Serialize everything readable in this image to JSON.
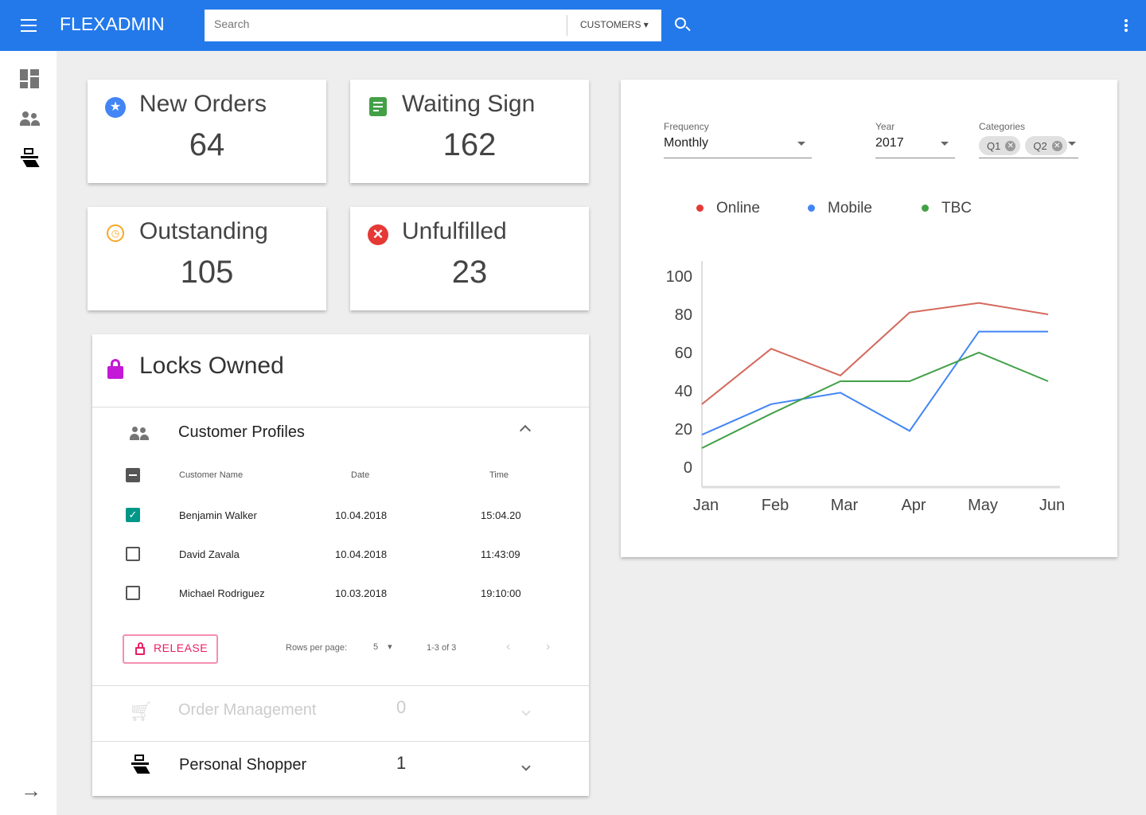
{
  "header": {
    "title": "FLEXADMIN",
    "search_placeholder": "Search",
    "scope": "CUSTOMERS"
  },
  "stats": [
    {
      "title": "New Orders",
      "value": "64",
      "icon": "star-icon",
      "color": "#4285f4"
    },
    {
      "title": "Waiting Sign",
      "value": "162",
      "icon": "document-icon",
      "color": "#43a047"
    },
    {
      "title": "Outstanding",
      "value": "105",
      "icon": "history-icon",
      "color": "#f9a825"
    },
    {
      "title": "Unfulfilled",
      "value": "23",
      "icon": "error-icon",
      "color": "#e53935"
    }
  ],
  "locks": {
    "title": "Locks Owned",
    "profiles": {
      "title": "Customer Profiles",
      "headers": [
        "Customer Name",
        "Date",
        "Time"
      ],
      "rows": [
        {
          "name": "Benjamin Walker",
          "date": "10.04.2018",
          "time": "15:04.20",
          "checked": true
        },
        {
          "name": "David Zavala",
          "date": "10.04.2018",
          "time": "11:43:09",
          "checked": false
        },
        {
          "name": "Michael Rodriguez",
          "date": "10.03.2018",
          "time": "19:10:00",
          "checked": false
        }
      ],
      "release": "RELEASE",
      "rows_per_page_label": "Rows per page:",
      "rows_per_page": "5",
      "range": "1-3 of 3"
    },
    "order_mgmt": {
      "title": "Order Management",
      "count": "0"
    },
    "shopper": {
      "title": "Personal Shopper",
      "count": "1"
    }
  },
  "filters": {
    "frequency_label": "Frequency",
    "frequency": "Monthly",
    "year_label": "Year",
    "year": "2017",
    "categories_label": "Categories",
    "chips": [
      "Q1",
      "Q2"
    ]
  },
  "chart_data": {
    "type": "line",
    "categories": [
      "Jan",
      "Feb",
      "Mar",
      "Apr",
      "May",
      "Jun"
    ],
    "ylim": [
      0,
      100
    ],
    "yticks": [
      "0",
      "20",
      "40",
      "60",
      "80",
      "100"
    ],
    "series": [
      {
        "name": "Online",
        "color": "#e53935",
        "line": "#d46a5e",
        "values": [
          33,
          62,
          48,
          81,
          86,
          80
        ]
      },
      {
        "name": "Mobile",
        "color": "#4285f4",
        "line": "#4285f4",
        "values": [
          17,
          33,
          39,
          19,
          71,
          71
        ]
      },
      {
        "name": "TBC",
        "color": "#43a047",
        "line": "#43a047",
        "values": [
          10,
          28,
          45,
          45,
          60,
          45
        ]
      }
    ]
  }
}
